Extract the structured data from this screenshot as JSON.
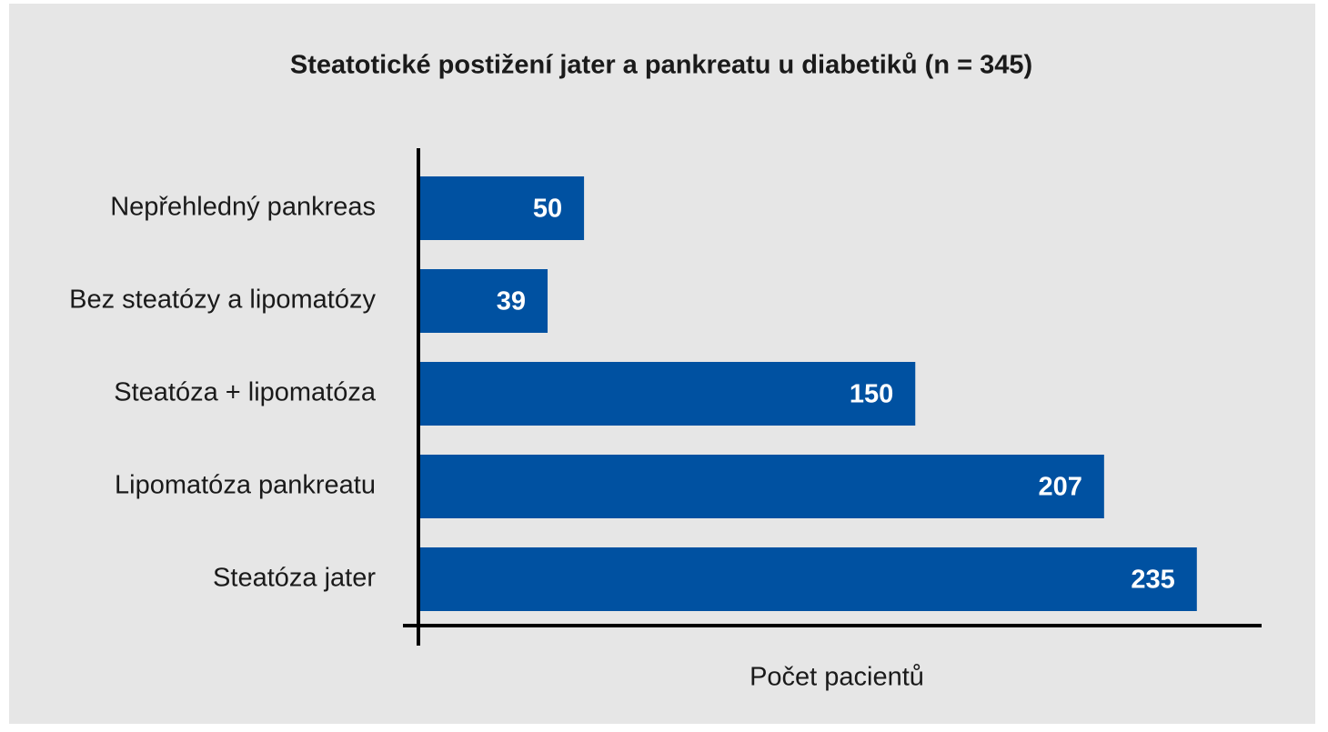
{
  "chart_data": {
    "type": "barh",
    "title": "Steatotické postižení jater a pankreatu u diabetiků (n = 345)",
    "x_label": "Počet pacientů",
    "categories": [
      "Nepřehledný pankreas",
      "Bez steatózy a lipomatózy",
      "Steatóza + lipomatóza",
      "Lipomatóza pankreatu",
      "Steatóza jater"
    ],
    "values": [
      50,
      39,
      150,
      207,
      235
    ],
    "color": "#0051a1",
    "xlim": [
      0,
      254
    ]
  }
}
